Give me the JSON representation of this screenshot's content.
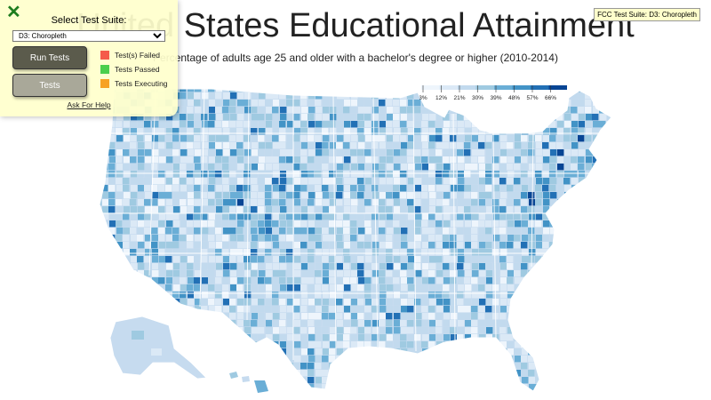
{
  "page": {
    "title": "United States Educational Attainment",
    "description": "Percentage of adults age 25 and older with a bachelor's degree or higher (2010-2014)"
  },
  "legend": {
    "ticks": [
      "3%",
      "12%",
      "21%",
      "30%",
      "39%",
      "48%",
      "57%",
      "66%"
    ],
    "colors": [
      "#eef5fc",
      "#dbe9f6",
      "#c2daee",
      "#9fcae1",
      "#6aaed6",
      "#4293c6",
      "#2270b5",
      "#084594"
    ]
  },
  "map_data": {
    "type": "choropleth",
    "variable": "Percentage of adults age 25 and older with a bachelor's degree or higher",
    "scale": {
      "min_percent": 3,
      "max_percent": 66
    },
    "base_color": "#c6dbef",
    "state_border_color": "#ffffff",
    "features": [
      "Continental United States",
      "Alaska",
      "Hawaii"
    ]
  },
  "test_suite": {
    "close_icon": "close-icon",
    "select_label": "Select Test Suite:",
    "selected_suite": "D3: Choropleth",
    "run_tests_label": "Run Tests",
    "tests_label": "Tests",
    "statuses": [
      {
        "label": "Test(s) Failed",
        "color": "#f55b4a"
      },
      {
        "label": "Tests Passed",
        "color": "#4ccf4c"
      },
      {
        "label": "Tests Executing",
        "color": "#f7a223"
      }
    ],
    "help_label": "Ask For Help",
    "badge": "FCC Test Suite: D3: Choropleth"
  }
}
